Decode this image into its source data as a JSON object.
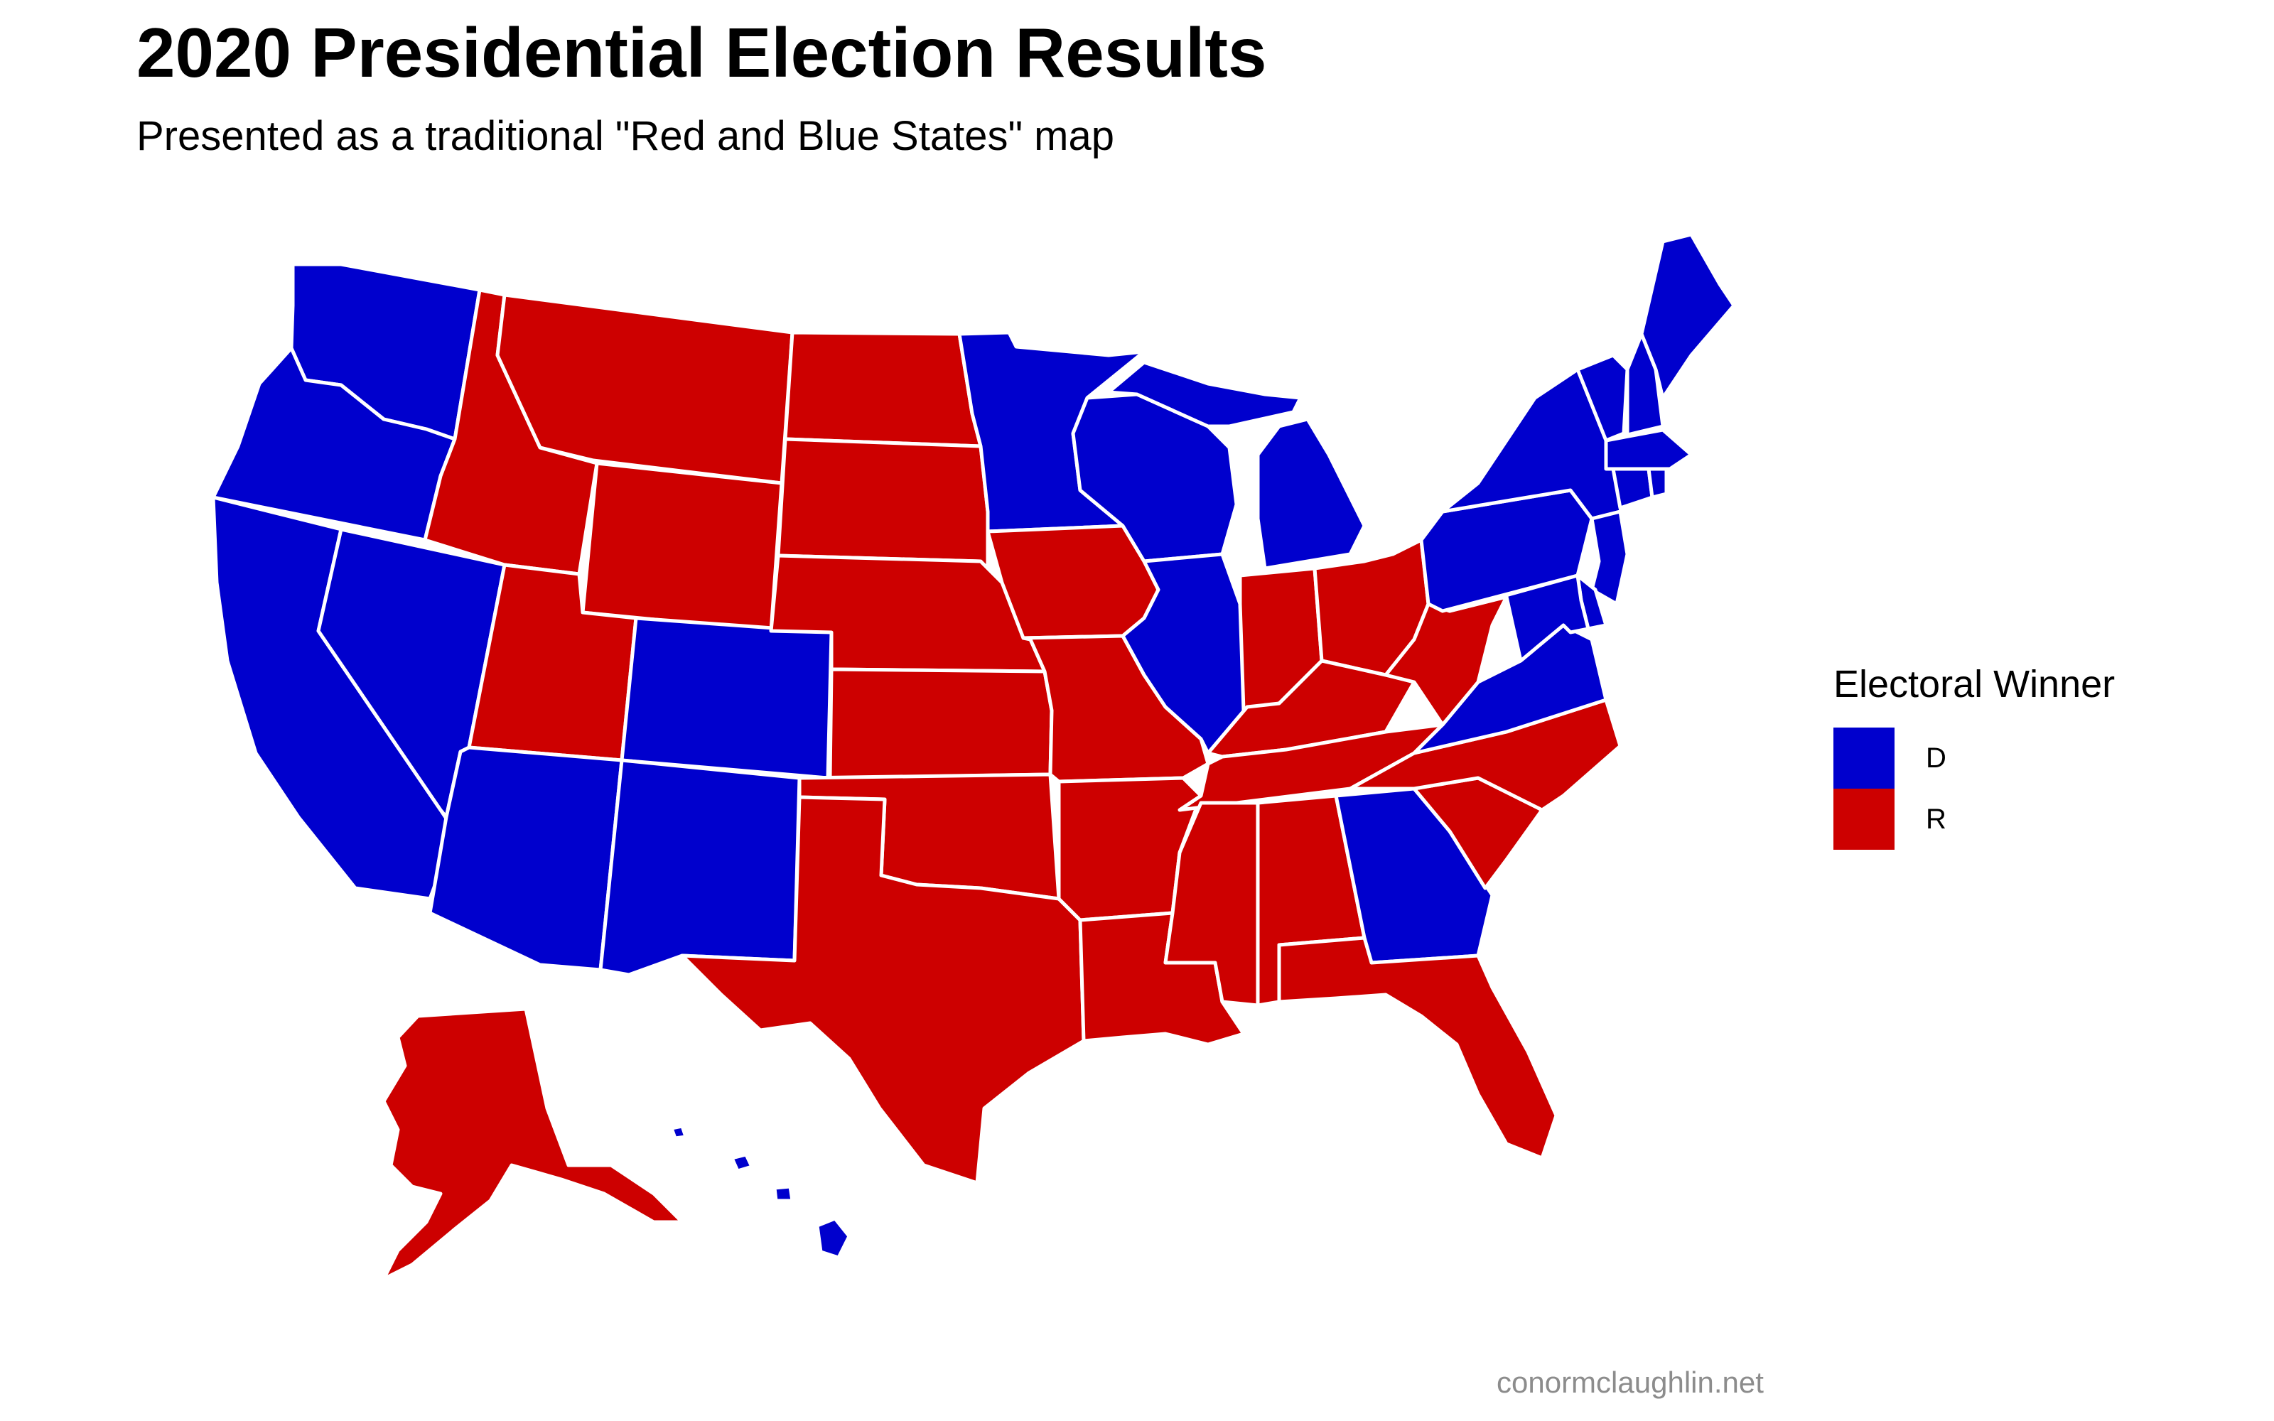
{
  "title": "2020 Presidential Election Results",
  "subtitle": "Presented as a traditional \"Red and Blue States\" map",
  "legend": {
    "title": "Electoral Winner",
    "items": [
      {
        "label": "D",
        "color": "#0000cd"
      },
      {
        "label": "R",
        "color": "#cd0000"
      }
    ]
  },
  "caption": "conormclaughlin.net",
  "colors": {
    "D": "#0000cd",
    "R": "#cd0000"
  },
  "states": {
    "WA": "D",
    "OR": "D",
    "CA": "D",
    "NV": "D",
    "ID": "R",
    "MT": "R",
    "WY": "R",
    "UT": "R",
    "CO": "D",
    "AZ": "D",
    "NM": "D",
    "ND": "R",
    "SD": "R",
    "NE": "R",
    "KS": "R",
    "OK": "R",
    "TX": "R",
    "MN": "D",
    "IA": "R",
    "MO": "R",
    "AR": "R",
    "LA": "R",
    "WI": "D",
    "IL": "D",
    "MI": "D",
    "IN": "R",
    "OH": "R",
    "KY": "R",
    "TN": "R",
    "MS": "R",
    "AL": "R",
    "GA": "D",
    "FL": "R",
    "SC": "R",
    "NC": "R",
    "VA": "D",
    "WV": "R",
    "PA": "D",
    "NY": "D",
    "VT": "D",
    "NH": "D",
    "ME": "D",
    "MA": "D",
    "CT": "D",
    "RI": "D",
    "NJ": "D",
    "DE": "D",
    "MD": "D",
    "AK": "R",
    "HI": "D"
  }
}
